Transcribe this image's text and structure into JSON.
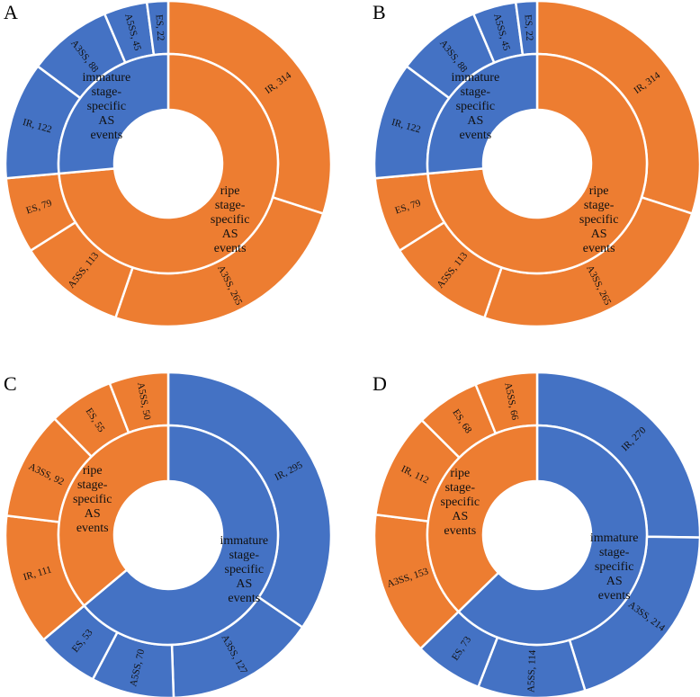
{
  "chart_data": [
    {
      "type": "sunburst",
      "panel": "A",
      "series": [
        {
          "name": "ripe stage-specific AS events",
          "color": "#ed7d31",
          "values": [
            314,
            265,
            113,
            79
          ],
          "value_labels": [
            "IR, 314",
            "A3SS, 265",
            "A5SS, 113",
            "ES, 79"
          ]
        },
        {
          "name": "immature stage-specific AS events",
          "color": "#4472c4",
          "values": [
            122,
            88,
            45,
            22
          ],
          "value_labels": [
            "IR, 122",
            "A3SS, 88",
            "A5SS, 45",
            "ES, 22"
          ]
        }
      ]
    },
    {
      "type": "sunburst",
      "panel": "B",
      "series": [
        {
          "name": "ripe stage-specific AS events",
          "color": "#ed7d31",
          "values": [
            314,
            265,
            113,
            79
          ],
          "value_labels": [
            "IR, 314",
            "A3SS, 265",
            "A5SS, 113",
            "ES, 79"
          ]
        },
        {
          "name": "immature stage-specific AS events",
          "color": "#4472c4",
          "values": [
            122,
            88,
            45,
            22
          ],
          "value_labels": [
            "IR, 122",
            "A3SS, 88",
            "A5SS, 45",
            "ES, 22"
          ]
        }
      ]
    },
    {
      "type": "sunburst",
      "panel": "C",
      "series": [
        {
          "name": "immature stage-specific AS events",
          "color": "#4472c4",
          "values": [
            295,
            127,
            70,
            53
          ],
          "value_labels": [
            "IR, 295",
            "A3SS, 127",
            "A5SS, 70",
            "ES, 53"
          ]
        },
        {
          "name": "ripe stage-specific AS events",
          "color": "#ed7d31",
          "values": [
            111,
            92,
            55,
            50
          ],
          "value_labels": [
            "IR, 111",
            "A3SS, 92",
            "ES, 55",
            "A5SS, 50"
          ]
        }
      ]
    },
    {
      "type": "sunburst",
      "panel": "D",
      "series": [
        {
          "name": "immature stage-specific AS events",
          "color": "#4472c4",
          "values": [
            270,
            214,
            114,
            73
          ],
          "value_labels": [
            "IR, 270",
            "A3SS, 214",
            "A5SS, 114",
            "ES, 73"
          ]
        },
        {
          "name": "ripe stage-specific AS events",
          "color": "#ed7d31",
          "values": [
            153,
            112,
            68,
            66
          ],
          "value_labels": [
            "A3SS, 153",
            "IR, 112",
            "ES, 68",
            "A5SS, 66"
          ]
        }
      ]
    }
  ]
}
